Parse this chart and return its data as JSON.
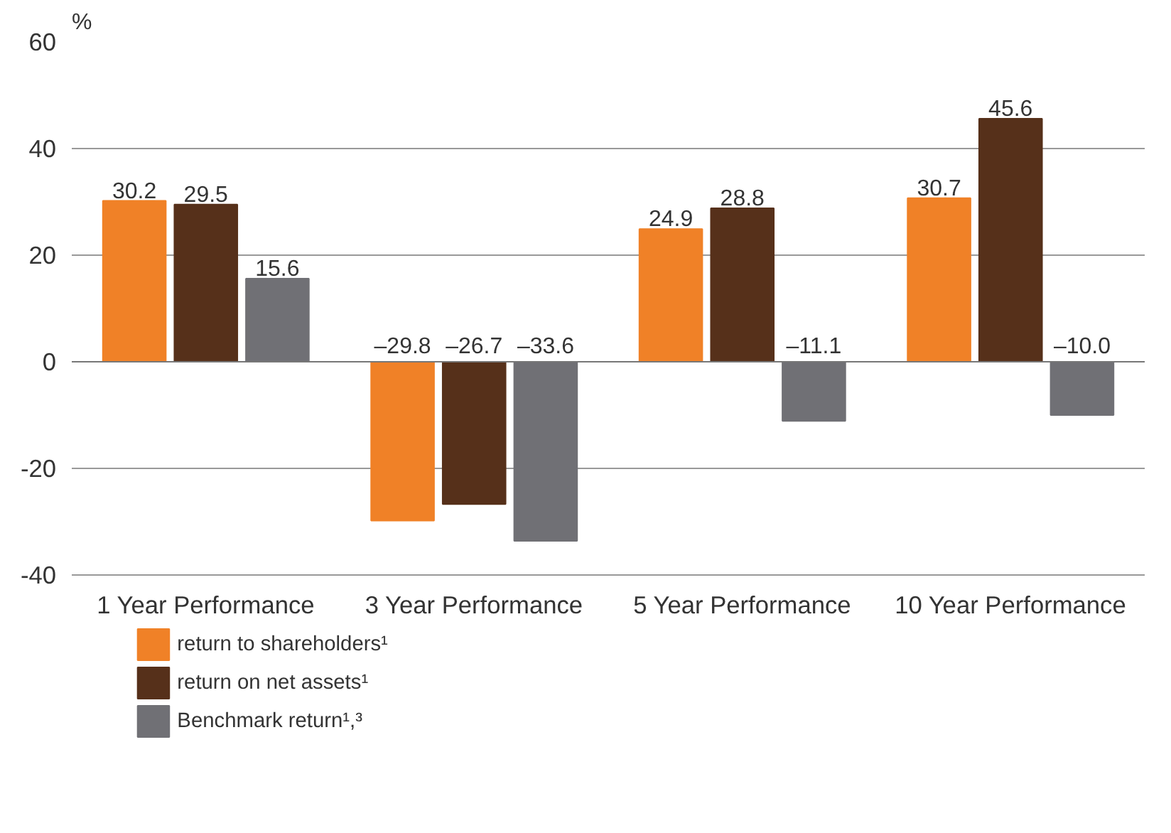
{
  "chart_data": {
    "type": "bar",
    "ylabel": "%",
    "categories": [
      "1 Year Performance",
      "3 Year Performance",
      "5 Year Performance",
      "10 Year Performance"
    ],
    "series": [
      {
        "name": "return to shareholders¹",
        "color": "#f08127",
        "values": [
          30.2,
          -29.8,
          24.9,
          30.7
        ],
        "value_labels": [
          "30.2",
          "–29.8",
          "24.9",
          "30.7"
        ]
      },
      {
        "name": "return on net assets¹",
        "color": "#56301a",
        "values": [
          29.5,
          -26.7,
          28.8,
          45.6
        ],
        "value_labels": [
          "29.5",
          "–26.7",
          "28.8",
          "45.6"
        ]
      },
      {
        "name": "Benchmark return¹,³",
        "color": "#707075",
        "values": [
          15.6,
          -33.6,
          -11.1,
          -10.0
        ],
        "value_labels": [
          "15.6",
          "–33.6",
          "–11.1",
          "–10.0"
        ]
      }
    ],
    "ylim": [
      -40,
      60
    ],
    "yticks": [
      -40,
      -20,
      0,
      20,
      40,
      60
    ],
    "grid": "y",
    "legend": "bottom"
  }
}
